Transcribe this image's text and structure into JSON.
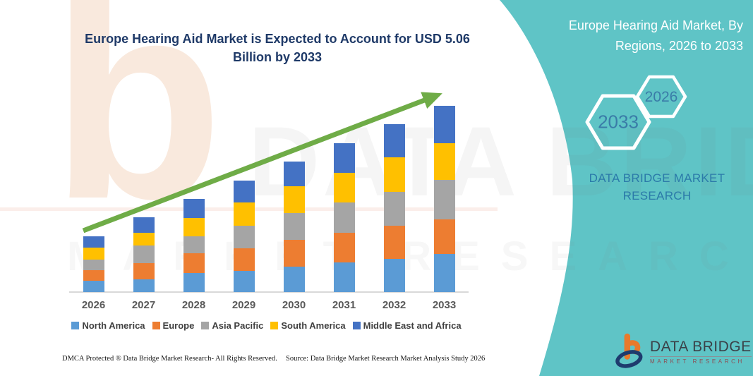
{
  "title": {
    "text": "Europe Hearing Aid Market is Expected to Account for USD 5.06 Billion by 2033"
  },
  "right_panel": {
    "heading": "Europe Hearing Aid Market, By Regions, 2026 to 2033",
    "hexagons": [
      {
        "label": "2033"
      },
      {
        "label": "2026"
      }
    ],
    "brand_text": "DATA BRIDGE MARKET RESEARCH"
  },
  "logo": {
    "name": "DATA BRIDGE",
    "tagline": "MARKET RESEARCH"
  },
  "footer": {
    "dmca": "DMCA Protected ® Data Bridge Market Research-  All Rights Reserved.",
    "source": "Source: Data Bridge Market Research  Market Analysis Study 2026"
  },
  "watermark": {
    "glyph": "b",
    "row1": "DATA BRIDGE",
    "row2": "MARKET RESEARCH"
  },
  "chart_data": {
    "type": "bar",
    "stacked": true,
    "title": "Europe Hearing Aid Market is Expected to Account for USD 5.06 Billion by 2033",
    "unit": "USD Billion",
    "categories": [
      "2026",
      "2027",
      "2028",
      "2029",
      "2030",
      "2031",
      "2032",
      "2033"
    ],
    "series": [
      {
        "name": "North America",
        "color": "#5B9BD5",
        "values": [
          0.29,
          0.34,
          0.51,
          0.56,
          0.69,
          0.79,
          0.9,
          1.03
        ]
      },
      {
        "name": "Europe",
        "color": "#ED7D31",
        "values": [
          0.3,
          0.43,
          0.53,
          0.63,
          0.72,
          0.81,
          0.9,
          0.95
        ]
      },
      {
        "name": "Asia Pacific",
        "color": "#A5A5A5",
        "values": [
          0.28,
          0.49,
          0.47,
          0.61,
          0.73,
          0.83,
          0.92,
          1.06
        ]
      },
      {
        "name": "South America",
        "color": "#FFC000",
        "values": [
          0.33,
          0.35,
          0.51,
          0.64,
          0.73,
          0.81,
          0.94,
          1.01
        ]
      },
      {
        "name": "Middle East and Africa",
        "color": "#4472C4",
        "values": [
          0.31,
          0.42,
          0.51,
          0.58,
          0.67,
          0.8,
          0.9,
          1.01
        ]
      }
    ],
    "totals": [
      1.51,
      2.03,
      2.53,
      3.02,
      3.54,
      4.04,
      4.56,
      5.06
    ],
    "trend_line_color": "#6FAC47",
    "legend_position": "bottom",
    "grid": false
  },
  "colors": {
    "panel_teal": "#5FC4C6",
    "title_navy": "#1F3A68",
    "panel_text_blue": "#2B7AA9",
    "hex_label_blue": "#3A7CA8",
    "axis_label_gray": "#595959",
    "legend_text_gray": "#404040",
    "logo_orange": "#E87A2B",
    "logo_navy": "#1E3B6E"
  }
}
